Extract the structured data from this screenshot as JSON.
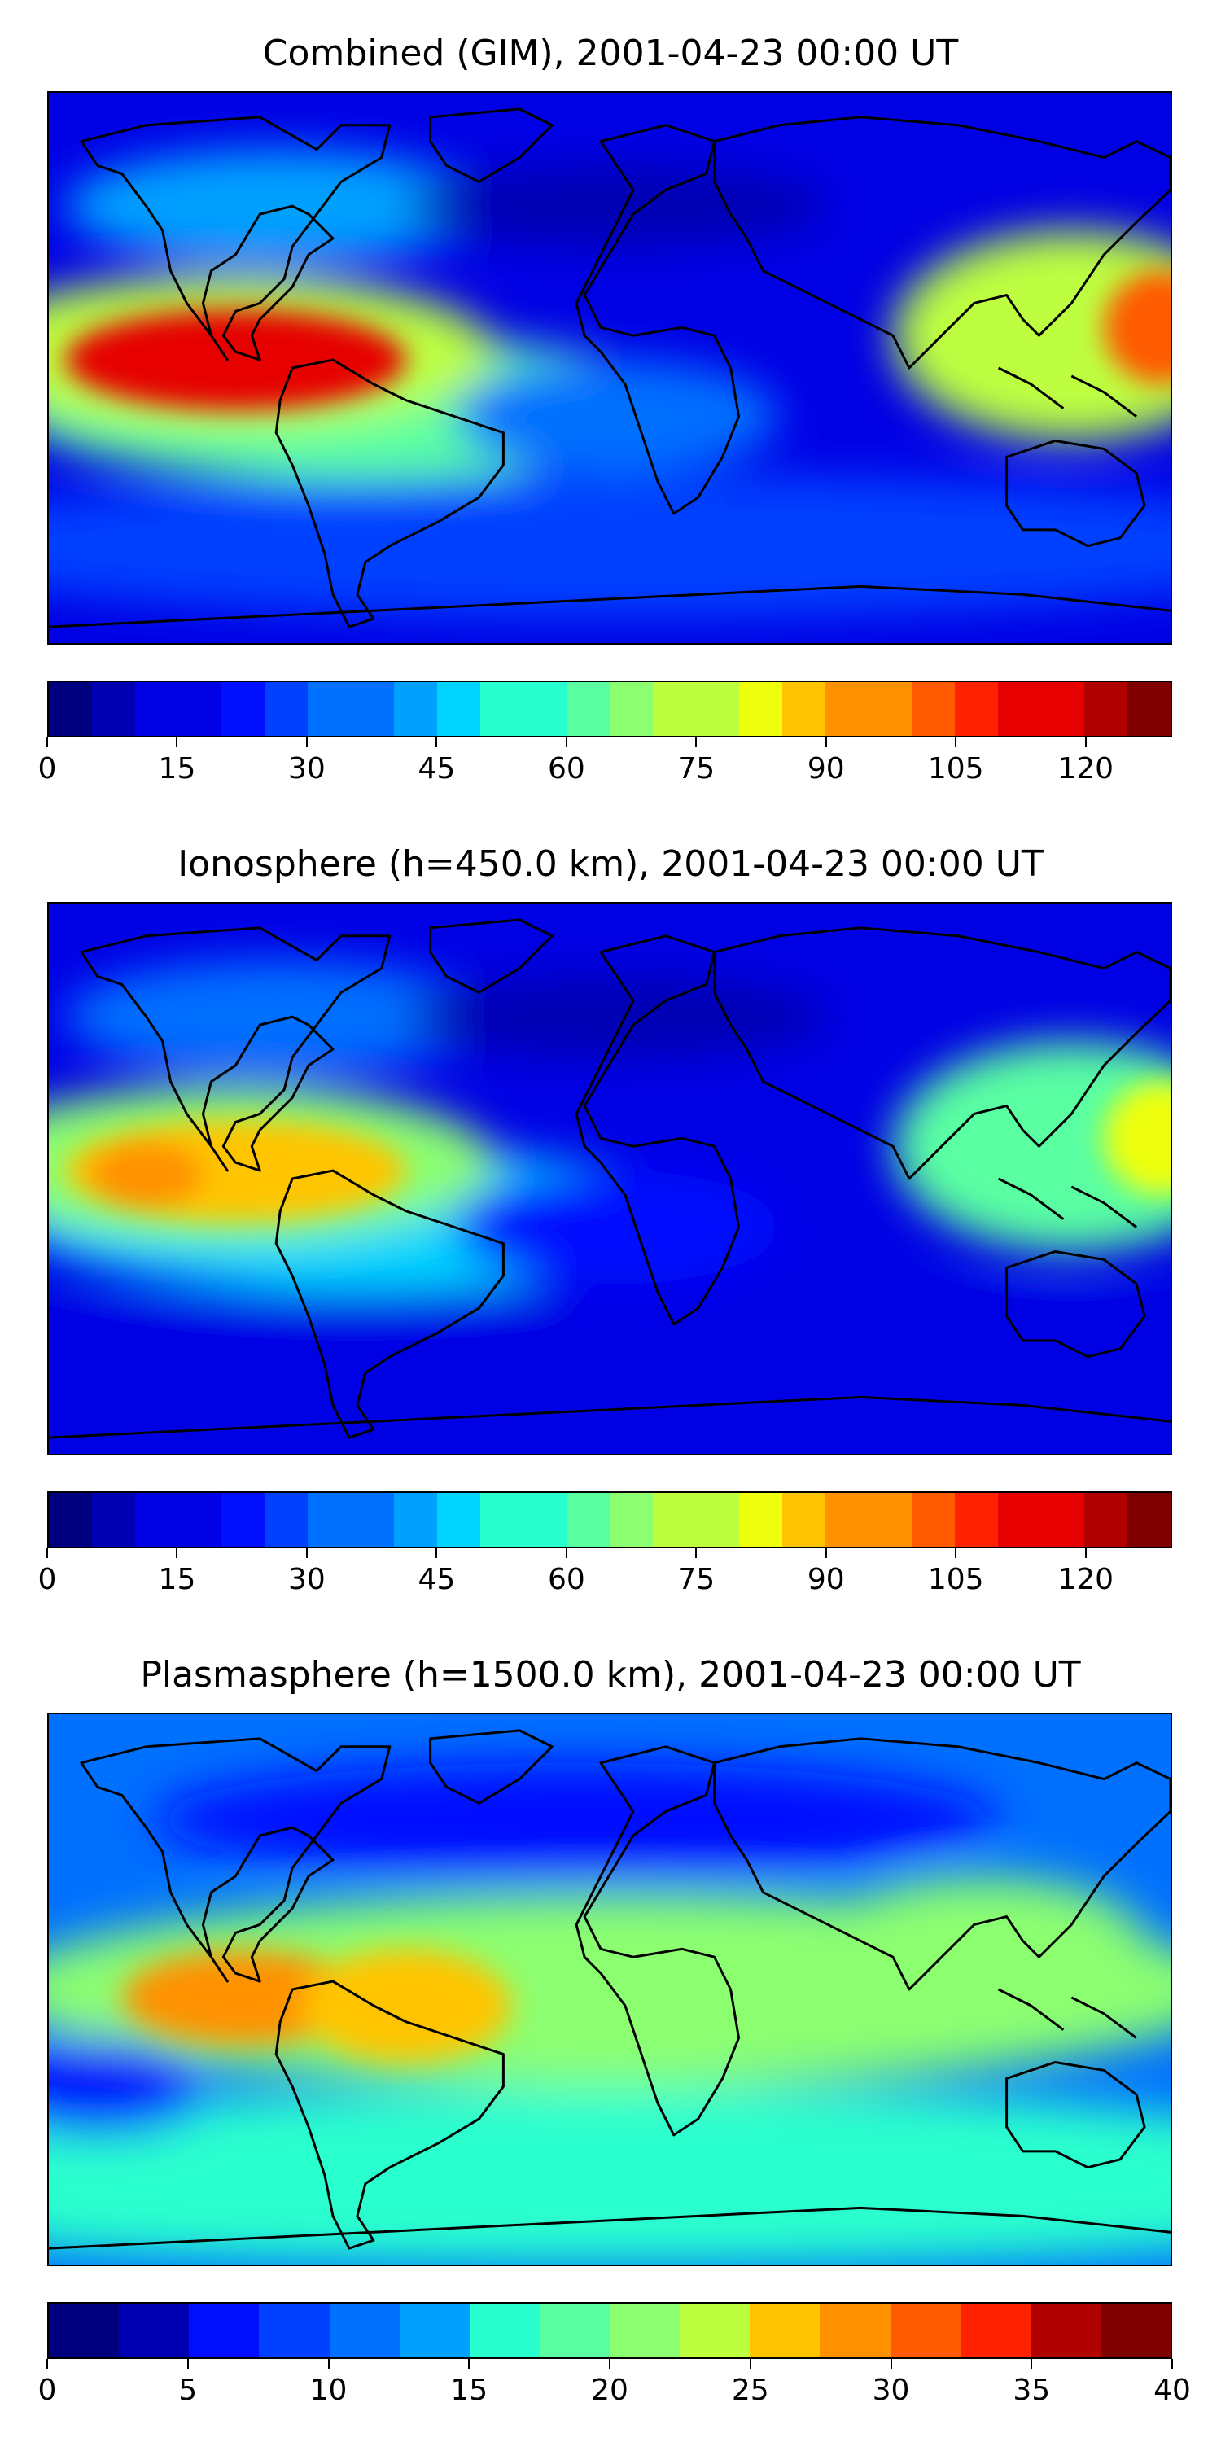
{
  "colors": [
    "#00007f",
    "#0000b2",
    "#0000e5",
    "#0010ff",
    "#0040ff",
    "#0070ff",
    "#00a0ff",
    "#00d4ff",
    "#29ffce",
    "#5affa2",
    "#8cff71",
    "#bdff3f",
    "#eeff0e",
    "#ffc400",
    "#ff9100",
    "#ff5a00",
    "#ff2200",
    "#e60000",
    "#b10000",
    "#7f0000"
  ],
  "land_color": "#000000",
  "charts": [
    {
      "title": "Combined (GIM), 2001-04-23 00:00 UT",
      "chart_data": {
        "type": "heatmap",
        "projection": "plate carrée world map with coastlines",
        "colorbar": {
          "ticks": [
            0,
            15,
            30,
            45,
            60,
            75,
            90,
            105,
            120
          ],
          "range": [
            0,
            130
          ],
          "levels": 26
        },
        "features": [
          {
            "region": "background",
            "value": 14
          },
          {
            "region": "southern-mid-latitudes",
            "value": 26
          },
          {
            "region": "south-america-band",
            "value": 60
          },
          {
            "region": "northern-east-pacific",
            "value": 40
          },
          {
            "region": "east-pacific-crest",
            "value": 78
          },
          {
            "region": "east-pacific-peak",
            "value": 110
          },
          {
            "region": "central-pacific-core",
            "value": 118
          },
          {
            "region": "east-asia-crest",
            "value": 72
          },
          {
            "region": "west-pacific-peak",
            "value": 100
          },
          {
            "region": "south-atlantic",
            "value": 34
          },
          {
            "region": "northern-polar-trough",
            "value": 8
          }
        ]
      }
    },
    {
      "title": "Ionosphere  (h=450.0 km), 2001-04-23 00:00 UT",
      "chart_data": {
        "type": "heatmap",
        "projection": "plate carrée world map with coastlines",
        "colorbar": {
          "ticks": [
            0,
            15,
            30,
            45,
            60,
            75,
            90,
            105,
            120
          ],
          "range": [
            0,
            130
          ],
          "levels": 26
        },
        "features": [
          {
            "region": "background",
            "value": 12
          },
          {
            "region": "southern-mid-latitudes",
            "value": 18
          },
          {
            "region": "south-america-band",
            "value": 45
          },
          {
            "region": "northern-east-pacific",
            "value": 30
          },
          {
            "region": "east-pacific-crest",
            "value": 65
          },
          {
            "region": "east-pacific-peak",
            "value": 85
          },
          {
            "region": "central-pacific-core",
            "value": 94
          },
          {
            "region": "east-asia-crest",
            "value": 60
          },
          {
            "region": "west-pacific-peak",
            "value": 80
          },
          {
            "region": "south-atlantic",
            "value": 22
          },
          {
            "region": "northern-polar-trough",
            "value": 6
          }
        ]
      }
    },
    {
      "title": "Plasmasphere (h=1500.0 km), 2001-04-23 00:00 UT",
      "chart_data": {
        "type": "heatmap",
        "projection": "plate carrée world map with coastlines",
        "colorbar": {
          "ticks": [
            0,
            5,
            10,
            15,
            20,
            25,
            30,
            35,
            40
          ],
          "range": [
            0,
            40
          ],
          "levels": 16
        },
        "features": [
          {
            "region": "background",
            "value": 12
          },
          {
            "region": "southern-mid-latitudes",
            "value": 15
          },
          {
            "region": "tropical-band",
            "value": 20
          },
          {
            "region": "east-pacific-peak",
            "value": 29
          },
          {
            "region": "south-america-peak",
            "value": 26
          },
          {
            "region": "asia-crest",
            "value": 22
          },
          {
            "region": "northern-trough",
            "value": 6
          },
          {
            "region": "south-pacific-low",
            "value": 7
          },
          {
            "region": "antarctic-coast",
            "value": 17
          }
        ]
      }
    }
  ]
}
